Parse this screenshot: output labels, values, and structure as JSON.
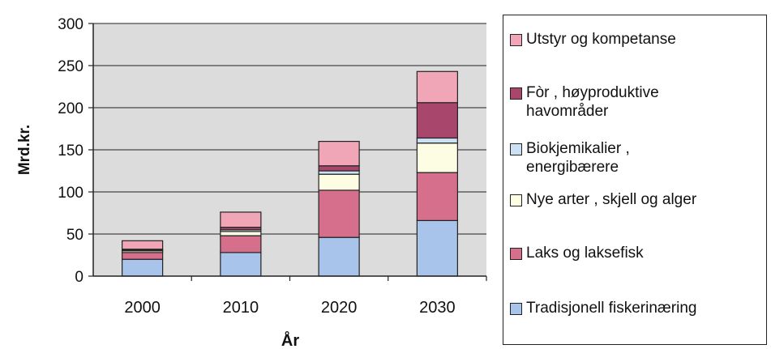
{
  "chart_data": {
    "type": "bar",
    "stacked": true,
    "categories": [
      "2000",
      "2010",
      "2020",
      "2030"
    ],
    "xlabel": "År",
    "ylabel": "Mrd.kr.",
    "ylim": [
      0,
      300
    ],
    "yticks": [
      0,
      50,
      100,
      150,
      200,
      250,
      300
    ],
    "grid": true,
    "legend_position": "right",
    "series": [
      {
        "name": "Tradisjonell fiskerinæring",
        "color": "#a8c4ea",
        "values": [
          20,
          28,
          46,
          66
        ]
      },
      {
        "name": "Laks og laksefisk",
        "color": "#d56f8c",
        "values": [
          8,
          20,
          56,
          57
        ]
      },
      {
        "name": "Nye arter , skjell og alger",
        "color": "#fdfde4",
        "values": [
          2,
          5,
          19,
          35
        ]
      },
      {
        "name": "Biokjemikalier , energibærere",
        "color": "#cbe0f3",
        "values": [
          1,
          2,
          4,
          6
        ]
      },
      {
        "name": "Fòr , høyproduktive havområder",
        "color": "#a9466c",
        "values": [
          1,
          3,
          6,
          42
        ]
      },
      {
        "name": "Utstyr og kompetanse",
        "color": "#f1a6b7",
        "values": [
          10,
          18,
          29,
          37
        ]
      }
    ]
  },
  "legend": {
    "items": [
      {
        "label": "Utstyr og kompetanse",
        "color": "#f1a6b7"
      },
      {
        "label": "Fòr , høyproduktive havområder",
        "color": "#a9466c"
      },
      {
        "label": "Biokjemikalier , energibærere",
        "color": "#cbe0f3"
      },
      {
        "label": "Nye arter , skjell og alger",
        "color": "#fdfde4"
      },
      {
        "label": "Laks og laksefisk",
        "color": "#d56f8c"
      },
      {
        "label": "Tradisjonell fiskerinæring",
        "color": "#a8c4ea"
      }
    ]
  }
}
